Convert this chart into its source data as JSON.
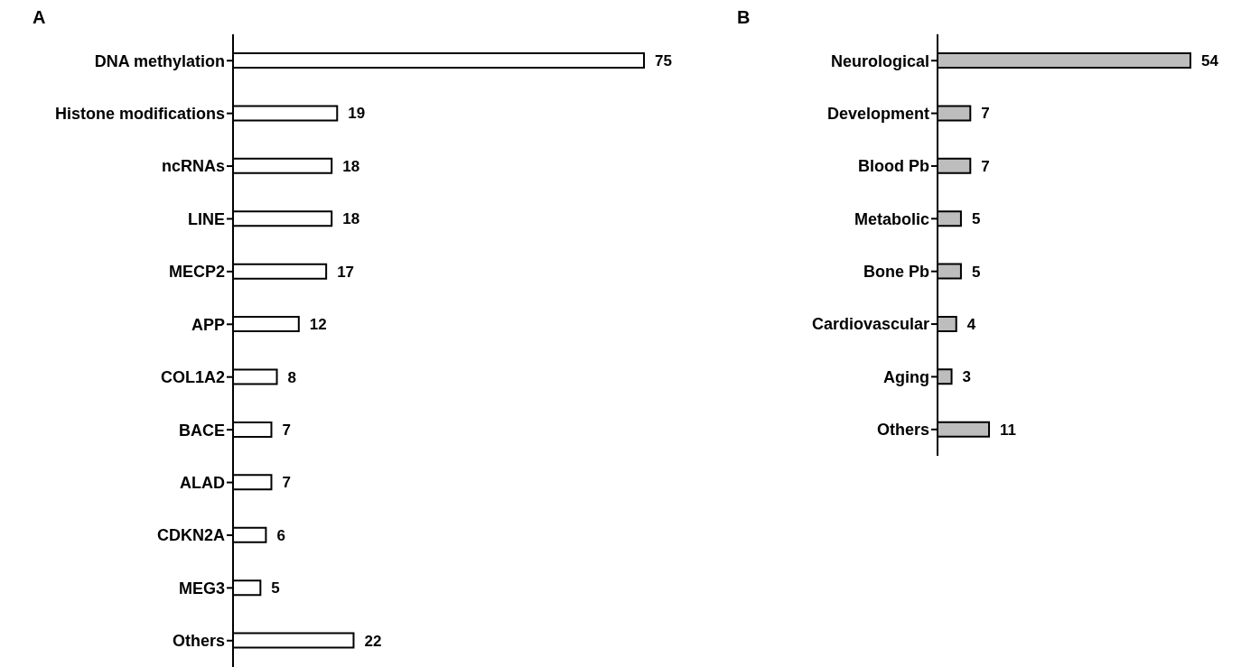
{
  "chart_data": [
    {
      "type": "bar",
      "title": "A",
      "orientation": "horizontal",
      "data_labels": true,
      "color": "#ffffff",
      "categories": [
        "DNA methylation",
        "Histone modifications",
        "ncRNAs",
        "LINE",
        "MECP2",
        "APP",
        "COL1A2",
        "BACE",
        "ALAD",
        "CDKN2A",
        "MEG3",
        "Others"
      ],
      "values": [
        75,
        19,
        18,
        18,
        17,
        12,
        8,
        7,
        7,
        6,
        5,
        22
      ]
    },
    {
      "type": "bar",
      "title": "B",
      "orientation": "horizontal",
      "data_labels": true,
      "color": "#bdbdbd",
      "categories": [
        "Neurological",
        "Development",
        "Blood Pb",
        "Metabolic",
        "Bone Pb",
        "Cardiovascular",
        "Aging",
        "Others"
      ],
      "values": [
        54,
        7,
        7,
        5,
        5,
        4,
        3,
        11
      ]
    }
  ]
}
